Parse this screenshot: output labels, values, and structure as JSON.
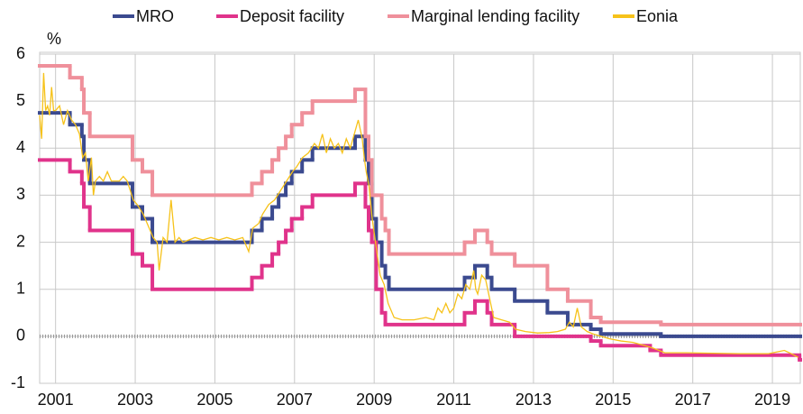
{
  "chart_data": {
    "type": "step-line",
    "y_label": "%",
    "xlim": [
      2000.6,
      2019.7
    ],
    "xticks": [
      2001,
      2003,
      2005,
      2007,
      2009,
      2011,
      2013,
      2015,
      2017,
      2019
    ],
    "ylim": [
      -1,
      6
    ],
    "yticks": [
      -1,
      0,
      1,
      2,
      3,
      4,
      5,
      6
    ],
    "grid": true,
    "legend": "top",
    "series": [
      {
        "name": "MRO",
        "color": "#3b4a8f",
        "style": "step",
        "x": [
          2000.6,
          2001.36,
          2001.66,
          2001.71,
          2001.86,
          2002.93,
          2003.18,
          2003.43,
          2005.93,
          2006.18,
          2006.44,
          2006.6,
          2006.78,
          2006.93,
          2007.19,
          2007.45,
          2008.52,
          2008.78,
          2008.86,
          2008.94,
          2009.05,
          2009.19,
          2009.28,
          2009.37,
          2011.27,
          2011.53,
          2011.84,
          2011.95,
          2012.53,
          2013.35,
          2013.86,
          2014.44,
          2014.69,
          2016.2
        ],
        "values": [
          4.75,
          4.5,
          4.25,
          3.75,
          3.25,
          2.75,
          2.5,
          2.0,
          2.25,
          2.5,
          2.75,
          3.0,
          3.25,
          3.5,
          3.75,
          4.0,
          4.25,
          3.75,
          3.25,
          2.5,
          2.0,
          1.5,
          1.25,
          1.0,
          1.25,
          1.5,
          1.25,
          1.0,
          0.75,
          0.5,
          0.25,
          0.15,
          0.05,
          0.0
        ]
      },
      {
        "name": "Deposit facility",
        "color": "#e0338b",
        "style": "step",
        "x": [
          2000.6,
          2001.36,
          2001.66,
          2001.71,
          2001.86,
          2002.93,
          2003.18,
          2003.43,
          2005.93,
          2006.18,
          2006.44,
          2006.6,
          2006.78,
          2006.93,
          2007.19,
          2007.45,
          2008.52,
          2008.78,
          2008.86,
          2008.94,
          2009.05,
          2009.19,
          2009.28,
          2011.27,
          2011.53,
          2011.84,
          2011.95,
          2012.53,
          2014.44,
          2014.69,
          2015.93,
          2016.2,
          2019.68
        ],
        "values": [
          3.75,
          3.5,
          3.25,
          2.75,
          2.25,
          1.75,
          1.5,
          1.0,
          1.25,
          1.5,
          1.75,
          2.0,
          2.25,
          2.5,
          2.75,
          3.0,
          3.25,
          2.75,
          2.25,
          2.0,
          1.0,
          0.5,
          0.25,
          0.5,
          0.75,
          0.5,
          0.25,
          0.0,
          -0.1,
          -0.2,
          -0.3,
          -0.4,
          -0.5
        ]
      },
      {
        "name": "Marginal lending facility",
        "color": "#ef909b",
        "style": "step",
        "x": [
          2000.6,
          2001.36,
          2001.66,
          2001.71,
          2001.86,
          2002.93,
          2003.18,
          2003.43,
          2005.93,
          2006.18,
          2006.44,
          2006.6,
          2006.78,
          2006.93,
          2007.19,
          2007.45,
          2008.52,
          2008.78,
          2008.86,
          2008.94,
          2009.05,
          2009.19,
          2009.28,
          2009.37,
          2011.27,
          2011.53,
          2011.84,
          2011.95,
          2012.53,
          2013.35,
          2013.86,
          2014.44,
          2014.69,
          2016.2
        ],
        "values": [
          5.75,
          5.5,
          5.25,
          4.75,
          4.25,
          3.75,
          3.5,
          3.0,
          3.25,
          3.5,
          3.75,
          4.0,
          4.25,
          4.5,
          4.75,
          5.0,
          5.25,
          4.25,
          3.75,
          3.0,
          3.0,
          2.5,
          2.25,
          1.75,
          2.0,
          2.25,
          2.0,
          1.75,
          1.5,
          1.0,
          0.75,
          0.4,
          0.3,
          0.25
        ]
      },
      {
        "name": "Eonia",
        "color": "#f6c21a",
        "style": "line",
        "x": [
          2000.6,
          2000.65,
          2000.7,
          2000.75,
          2000.8,
          2000.85,
          2000.9,
          2000.95,
          2001.0,
          2001.1,
          2001.2,
          2001.3,
          2001.4,
          2001.5,
          2001.6,
          2001.68,
          2001.75,
          2001.82,
          2001.9,
          2001.95,
          2002.0,
          2002.1,
          2002.2,
          2002.3,
          2002.4,
          2002.5,
          2002.6,
          2002.7,
          2002.8,
          2002.95,
          2003.05,
          2003.2,
          2003.3,
          2003.45,
          2003.55,
          2003.6,
          2003.7,
          2003.8,
          2003.9,
          2004.0,
          2004.1,
          2004.2,
          2004.35,
          2004.5,
          2004.7,
          2004.9,
          2005.1,
          2005.3,
          2005.5,
          2005.7,
          2005.85,
          2005.95,
          2006.1,
          2006.2,
          2006.35,
          2006.5,
          2006.65,
          2006.8,
          2006.95,
          2007.05,
          2007.2,
          2007.35,
          2007.5,
          2007.6,
          2007.7,
          2007.8,
          2007.9,
          2008.0,
          2008.1,
          2008.2,
          2008.3,
          2008.4,
          2008.5,
          2008.6,
          2008.7,
          2008.75,
          2008.8,
          2008.87,
          2008.95,
          2009.05,
          2009.15,
          2009.25,
          2009.35,
          2009.5,
          2009.7,
          2010.0,
          2010.3,
          2010.5,
          2010.6,
          2010.7,
          2010.8,
          2010.9,
          2011.0,
          2011.1,
          2011.2,
          2011.3,
          2011.4,
          2011.5,
          2011.55,
          2011.6,
          2011.7,
          2011.8,
          2011.9,
          2012.0,
          2012.2,
          2012.4,
          2012.55,
          2012.8,
          2013.1,
          2013.4,
          2013.6,
          2013.8,
          2013.9,
          2014.0,
          2014.1,
          2014.2,
          2014.35,
          2014.5,
          2014.7,
          2014.9,
          2015.2,
          2015.5,
          2015.8,
          2016.0,
          2016.3,
          2016.8,
          2017.5,
          2018.2,
          2018.9,
          2019.3,
          2019.5,
          2019.65
        ],
        "values": [
          4.7,
          4.2,
          5.6,
          4.8,
          4.9,
          4.7,
          5.3,
          4.8,
          4.8,
          4.9,
          4.5,
          4.8,
          4.6,
          4.5,
          4.3,
          3.8,
          3.9,
          3.3,
          3.8,
          3.0,
          3.3,
          3.4,
          3.3,
          3.5,
          3.3,
          3.3,
          3.3,
          3.4,
          3.3,
          2.9,
          2.8,
          2.6,
          2.4,
          2.1,
          2.0,
          1.4,
          2.1,
          2.0,
          2.9,
          2.0,
          2.1,
          2.0,
          2.05,
          2.1,
          2.05,
          2.1,
          2.05,
          2.1,
          2.05,
          2.1,
          1.8,
          2.3,
          2.4,
          2.6,
          2.8,
          2.9,
          3.1,
          3.3,
          3.5,
          3.6,
          3.8,
          3.9,
          4.1,
          4.0,
          4.3,
          3.9,
          4.2,
          4.0,
          4.1,
          3.9,
          4.2,
          4.0,
          4.3,
          4.6,
          4.2,
          3.8,
          3.5,
          3.2,
          2.5,
          1.9,
          1.3,
          1.1,
          0.7,
          0.4,
          0.35,
          0.35,
          0.4,
          0.35,
          0.6,
          0.5,
          0.7,
          0.5,
          0.6,
          0.9,
          0.8,
          1.1,
          1.0,
          1.4,
          1.0,
          0.9,
          1.3,
          1.2,
          0.8,
          0.4,
          0.35,
          0.3,
          0.15,
          0.1,
          0.07,
          0.08,
          0.1,
          0.15,
          0.3,
          0.2,
          0.6,
          0.2,
          0.1,
          0.05,
          0.0,
          -0.05,
          -0.1,
          -0.13,
          -0.2,
          -0.25,
          -0.35,
          -0.35,
          -0.36,
          -0.37,
          -0.37,
          -0.3,
          -0.38,
          -0.45
        ]
      }
    ]
  }
}
